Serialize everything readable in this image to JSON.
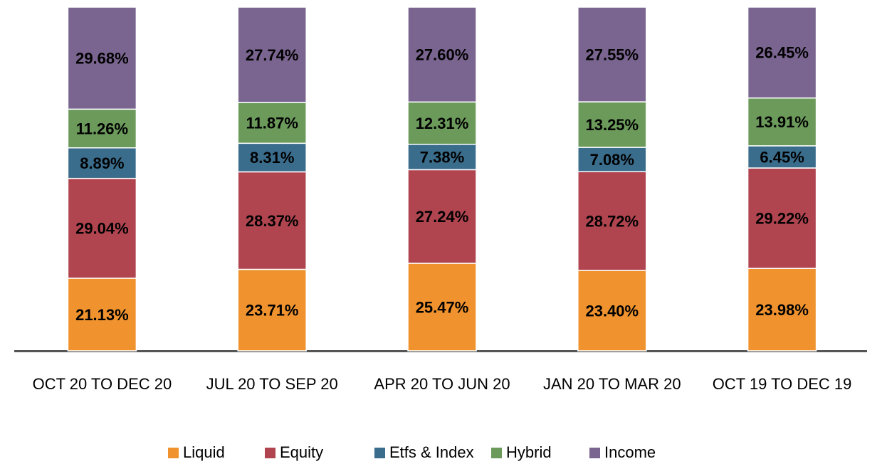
{
  "chart_data": {
    "type": "stacked_bar",
    "categories": [
      "OCT 20 TO DEC 20",
      "JUL 20 TO SEP 20",
      "APR 20 TO JUN 20",
      "JAN 20 TO MAR 20",
      "OCT 19 TO DEC 19"
    ],
    "ylim": [
      0,
      100
    ],
    "series": [
      {
        "name": "Liquid",
        "color": "#f0932f",
        "values": [
          21.13,
          23.71,
          25.47,
          23.4,
          23.98
        ],
        "value_labels": [
          "21.13%",
          "23.71%",
          "25.47%",
          "23.40%",
          "23.98%"
        ]
      },
      {
        "name": "Equity",
        "color": "#b04550",
        "values": [
          29.04,
          28.37,
          27.24,
          28.72,
          29.22
        ],
        "value_labels": [
          "29.04%",
          "28.37%",
          "27.24%",
          "28.72%",
          "29.22%"
        ]
      },
      {
        "name": "Etfs & Index",
        "color": "#3a6d8c",
        "values": [
          8.89,
          8.31,
          7.38,
          7.08,
          6.45
        ],
        "value_labels": [
          "8.89%",
          "8.31%",
          "7.38%",
          "7.08%",
          "6.45%"
        ]
      },
      {
        "name": "Hybrid",
        "color": "#6b9a5b",
        "values": [
          11.26,
          11.87,
          12.31,
          13.25,
          13.91
        ],
        "value_labels": [
          "11.26%",
          "11.87%",
          "12.31%",
          "13.25%",
          "13.91%"
        ]
      },
      {
        "name": "Income",
        "color": "#7a6590",
        "values": [
          29.68,
          27.74,
          27.6,
          27.55,
          26.45
        ],
        "value_labels": [
          "29.68%",
          "27.74%",
          "27.60%",
          "27.55%",
          "26.45%"
        ]
      }
    ]
  }
}
